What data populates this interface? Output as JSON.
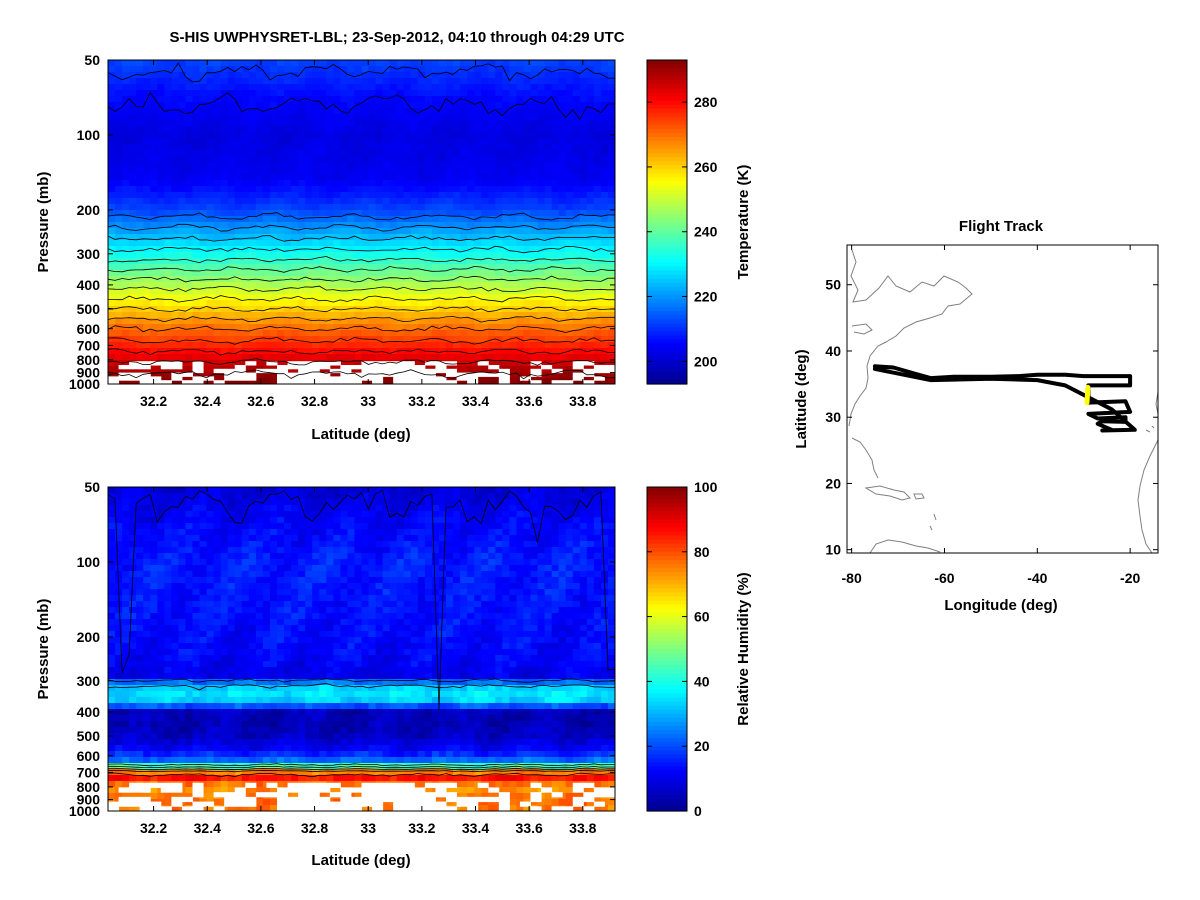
{
  "figure": {
    "title": "S-HIS UWPHYSRET-LBL;   23-Sep-2012, 04:10 through 04:29 UTC"
  },
  "colors": {
    "jet": [
      "#00008F",
      "#0000FF",
      "#0080FF",
      "#00FFFF",
      "#80FF80",
      "#FFFF00",
      "#FF8000",
      "#FF0000",
      "#800000"
    ],
    "mask": "#FFFFFF",
    "contour": "#000000",
    "track": "#000000",
    "track_marker": "#FFFF00",
    "coast": "#808080"
  },
  "chart_data": [
    {
      "id": "temperature",
      "type": "heatmap",
      "xlabel": "Latitude (deg)",
      "ylabel": "Pressure (mb)",
      "xlim": [
        32.03,
        33.92
      ],
      "ylim_pressure": [
        50,
        1000
      ],
      "yscale": "log",
      "xticks": [
        32.2,
        32.4,
        32.6,
        32.8,
        33,
        33.2,
        33.4,
        33.6,
        33.8
      ],
      "xtick_labels": [
        "32.2",
        "32.4",
        "32.6",
        "32.8",
        "33",
        "33.2",
        "33.4",
        "33.6",
        "33.8"
      ],
      "yticks": [
        50,
        100,
        200,
        300,
        400,
        500,
        600,
        700,
        800,
        900,
        1000
      ],
      "ytick_labels": [
        "50",
        "100",
        "200",
        "300",
        "400",
        "500",
        "600",
        "700",
        "800",
        "900",
        "1000"
      ],
      "colorbar": {
        "label": "Temperature (K)",
        "range": [
          193,
          293
        ],
        "ticks": [
          200,
          220,
          240,
          260,
          280
        ],
        "tick_labels": [
          "200",
          "220",
          "240",
          "260",
          "280"
        ]
      },
      "profile": {
        "pressure": [
          50,
          70,
          100,
          150,
          200,
          250,
          300,
          400,
          500,
          600,
          700,
          800,
          900,
          1000
        ],
        "value": [
          212,
          206,
          202,
          204,
          212,
          223,
          232,
          248,
          260,
          270,
          277,
          284,
          290,
          293
        ]
      },
      "contour_interval": 5,
      "mask_top_pressure": 810
    },
    {
      "id": "humidity",
      "type": "heatmap",
      "xlabel": "Latitude (deg)",
      "ylabel": "Pressure (mb)",
      "xlim": [
        32.03,
        33.92
      ],
      "ylim_pressure": [
        50,
        1000
      ],
      "yscale": "log",
      "xticks": [
        32.2,
        32.4,
        32.6,
        32.8,
        33,
        33.2,
        33.4,
        33.6,
        33.8
      ],
      "xtick_labels": [
        "32.2",
        "32.4",
        "32.6",
        "32.8",
        "33",
        "33.2",
        "33.4",
        "33.6",
        "33.8"
      ],
      "yticks": [
        50,
        100,
        200,
        300,
        400,
        500,
        600,
        700,
        800,
        900,
        1000
      ],
      "ytick_labels": [
        "50",
        "100",
        "200",
        "300",
        "400",
        "500",
        "600",
        "700",
        "800",
        "900",
        "1000"
      ],
      "colorbar": {
        "label": "Relative Humidity (%)",
        "range": [
          0,
          100
        ],
        "ticks": [
          0,
          20,
          40,
          60,
          80,
          100
        ],
        "tick_labels": [
          "0",
          "20",
          "40",
          "60",
          "80",
          "100"
        ]
      },
      "profile": {
        "pressure": [
          50,
          70,
          100,
          150,
          200,
          250,
          290,
          310,
          330,
          360,
          380,
          400,
          450,
          500,
          550,
          620,
          660,
          690,
          720,
          760,
          800,
          900,
          1000
        ],
        "value": [
          8,
          12,
          15,
          14,
          13,
          12,
          10,
          30,
          36,
          33,
          20,
          5,
          4,
          6,
          10,
          20,
          45,
          70,
          90,
          80,
          72,
          78,
          75
        ]
      },
      "contour_interval": 10,
      "mask_top_pressure": 770
    },
    {
      "id": "flight-track",
      "type": "line",
      "title": "Flight Track",
      "xlabel": "Longitude (deg)",
      "ylabel": "Latitude (deg)",
      "xlim": [
        -81,
        -14
      ],
      "ylim": [
        9.5,
        56
      ],
      "xticks": [
        -80,
        -60,
        -40,
        -20
      ],
      "xtick_labels": [
        "-80",
        "-60",
        "-40",
        "-20"
      ],
      "yticks": [
        10,
        20,
        30,
        40,
        50
      ],
      "ytick_labels": [
        "10",
        "20",
        "30",
        "40",
        "50"
      ],
      "track": {
        "lon": [
          -75,
          -71,
          -66,
          -63,
          -58,
          -50,
          -44,
          -40,
          -34,
          -30,
          -20,
          -20,
          -29,
          -29,
          -21,
          -20,
          -29,
          -27,
          -21,
          -21,
          -26,
          -27,
          -24,
          -26,
          -19,
          -24,
          -34,
          -40,
          -50,
          -63,
          -75
        ],
        "lat": [
          37.7,
          37.5,
          36.5,
          35.9,
          36.1,
          36.1,
          36.2,
          36.4,
          36.4,
          36.2,
          36.2,
          34.8,
          34.8,
          32.2,
          32.4,
          30.8,
          30.5,
          29.8,
          30.0,
          29.3,
          29.4,
          29.0,
          28.1,
          28.0,
          28.1,
          31.2,
          34.8,
          35.6,
          35.8,
          35.6,
          37.3
        ]
      },
      "segment_highlight": {
        "lon": [
          -29.3,
          -29.1
        ],
        "lat": [
          32.2,
          34.5
        ]
      }
    }
  ]
}
